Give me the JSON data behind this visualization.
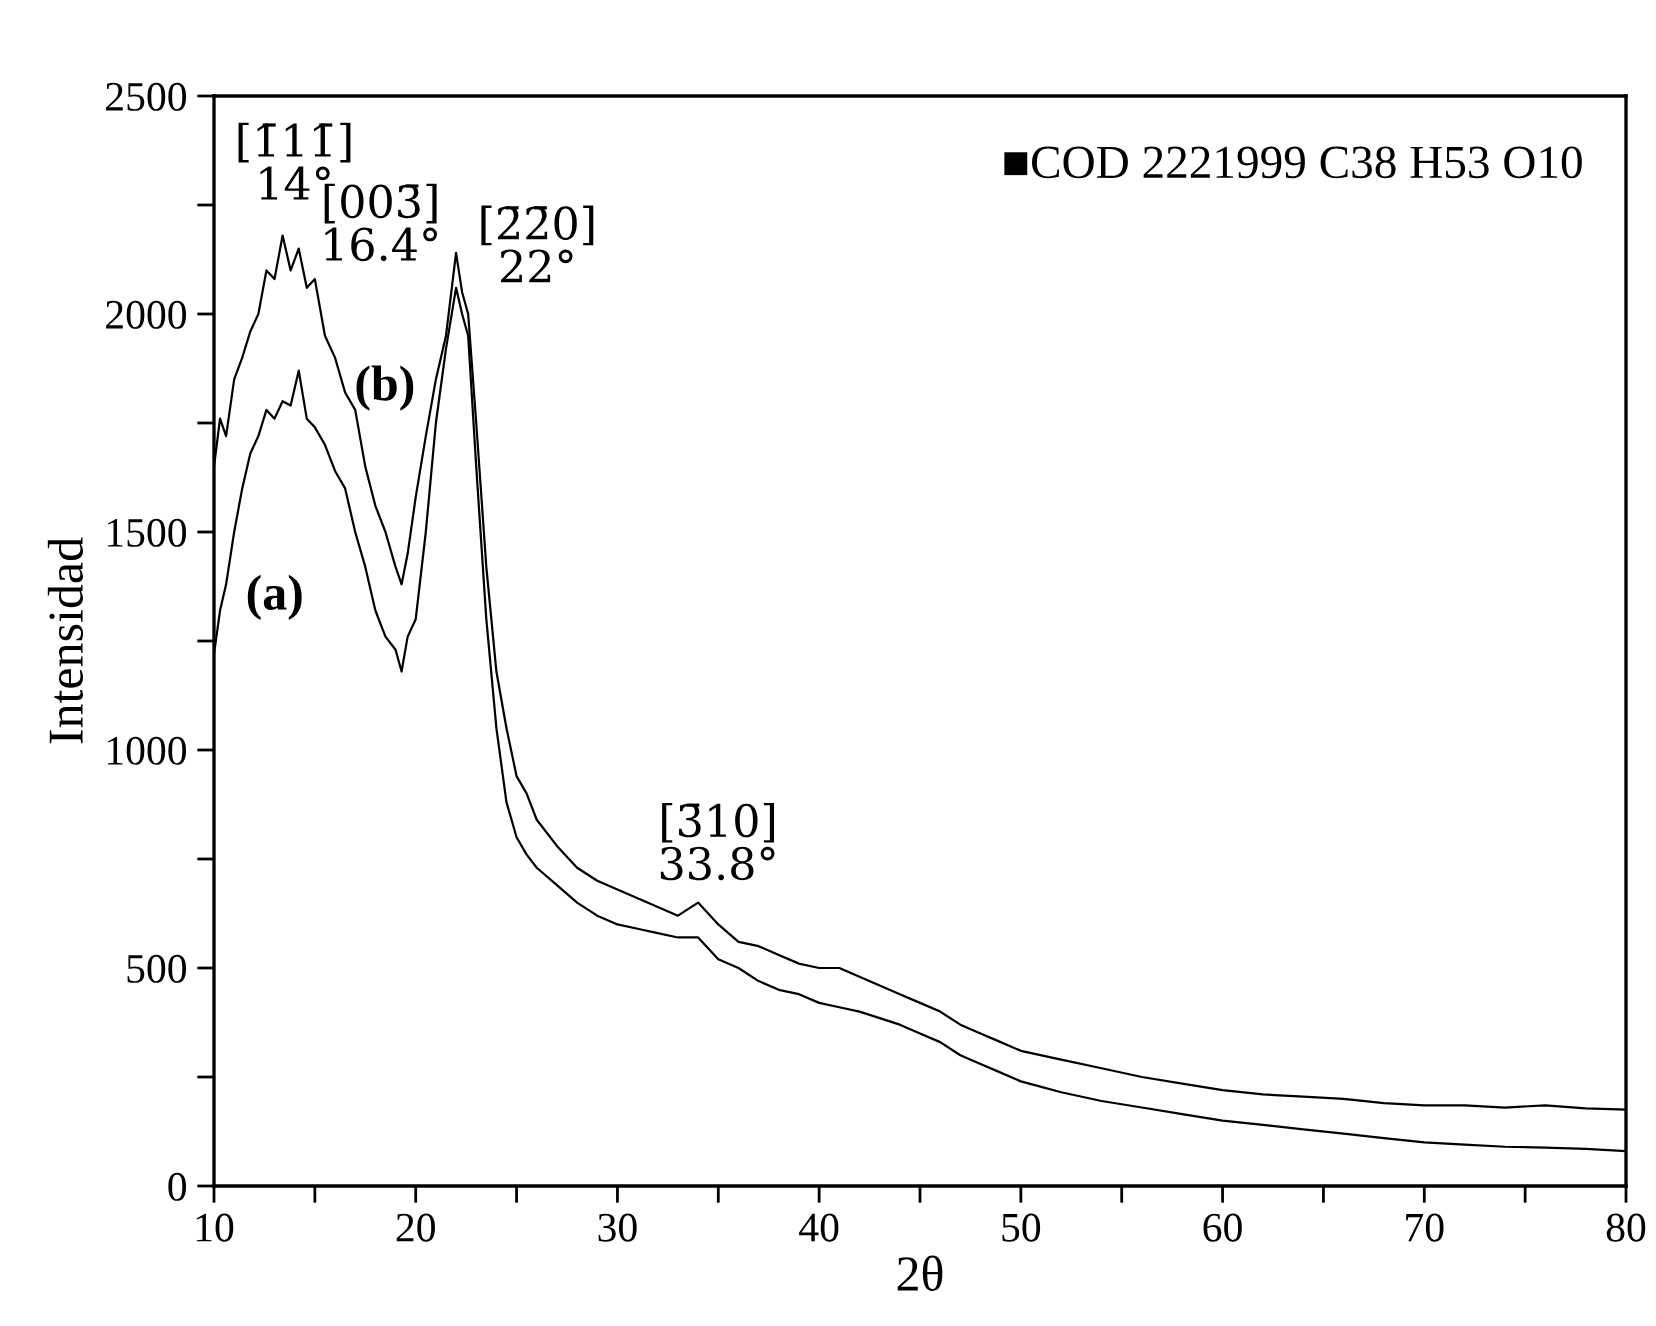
{
  "chart_data": {
    "type": "line",
    "xlabel": "2θ",
    "ylabel": "Intensidad",
    "xlim": [
      10,
      80
    ],
    "ylim": [
      0,
      2500
    ],
    "xticks": [
      10,
      {
        "value": 15,
        "label": null
      },
      20,
      {
        "value": 25,
        "label": null
      },
      30,
      {
        "value": 35,
        "label": null
      },
      40,
      {
        "value": 45,
        "label": null
      },
      50,
      {
        "value": 55,
        "label": null
      },
      60,
      {
        "value": 65,
        "label": null
      },
      70,
      {
        "value": 75,
        "label": null
      },
      80
    ],
    "yticks": [
      0,
      {
        "value": 250,
        "label": null
      },
      500,
      {
        "value": 750,
        "label": null
      },
      1000,
      {
        "value": 1250,
        "label": null
      },
      1500,
      {
        "value": 1750,
        "label": null
      },
      2000,
      {
        "value": 2250,
        "label": null
      },
      2500
    ],
    "grid": false,
    "marker": "none",
    "line_style": "solid",
    "series": [
      {
        "color": "#000000",
        "x": [
          10,
          10.3,
          10.6,
          11,
          11.4,
          11.8,
          12.2,
          12.6,
          13,
          13.4,
          13.8,
          14.2,
          14.6,
          15,
          15.5,
          16,
          16.5,
          17,
          17.5,
          18,
          18.5,
          19,
          19.3,
          19.6,
          20,
          20.5,
          21,
          21.5,
          22,
          22.3,
          22.6,
          23,
          23.5,
          24,
          24.5,
          25,
          25.5,
          26,
          27,
          28,
          29,
          30,
          31,
          32,
          33,
          34,
          35,
          36,
          37,
          38,
          39,
          40,
          41,
          42,
          43,
          44,
          45,
          46,
          47,
          48,
          49,
          50,
          52,
          54,
          56,
          58,
          60,
          62,
          64,
          66,
          68,
          70,
          72,
          74,
          76,
          78,
          80
        ],
        "values": [
          1650,
          1760,
          1720,
          1850,
          1900,
          1960,
          2000,
          2100,
          2080,
          2180,
          2100,
          2150,
          2060,
          2080,
          1950,
          1900,
          1820,
          1780,
          1650,
          1560,
          1500,
          1420,
          1380,
          1450,
          1580,
          1720,
          1850,
          1950,
          2140,
          2050,
          2000,
          1750,
          1420,
          1180,
          1050,
          940,
          900,
          840,
          780,
          730,
          700,
          680,
          660,
          640,
          620,
          650,
          600,
          560,
          550,
          530,
          510,
          500,
          500,
          480,
          460,
          440,
          420,
          400,
          370,
          350,
          330,
          310,
          290,
          270,
          250,
          235,
          220,
          210,
          205,
          200,
          190,
          185,
          185,
          180,
          185,
          178,
          175
        ]
      },
      {
        "color": "#000000",
        "x": [
          10,
          10.3,
          10.6,
          11,
          11.4,
          11.8,
          12.2,
          12.6,
          13,
          13.4,
          13.8,
          14.2,
          14.6,
          15,
          15.5,
          16,
          16.5,
          17,
          17.5,
          18,
          18.5,
          19,
          19.3,
          19.6,
          20,
          20.5,
          21,
          21.5,
          22,
          22.3,
          22.6,
          23,
          23.5,
          24,
          24.5,
          25,
          25.5,
          26,
          27,
          28,
          29,
          30,
          31,
          32,
          33,
          34,
          35,
          36,
          37,
          38,
          39,
          40,
          41,
          42,
          43,
          44,
          45,
          46,
          47,
          48,
          49,
          50,
          52,
          54,
          56,
          58,
          60,
          62,
          64,
          66,
          68,
          70,
          72,
          74,
          76,
          78,
          80
        ],
        "values": [
          1220,
          1320,
          1380,
          1500,
          1600,
          1680,
          1720,
          1780,
          1760,
          1800,
          1790,
          1870,
          1760,
          1740,
          1700,
          1640,
          1600,
          1500,
          1420,
          1320,
          1260,
          1230,
          1180,
          1260,
          1300,
          1500,
          1750,
          1920,
          2060,
          2000,
          1950,
          1650,
          1300,
          1050,
          880,
          800,
          760,
          730,
          690,
          650,
          620,
          600,
          590,
          580,
          570,
          570,
          520,
          500,
          470,
          450,
          440,
          420,
          410,
          400,
          385,
          370,
          350,
          330,
          300,
          280,
          260,
          240,
          215,
          195,
          180,
          165,
          150,
          140,
          130,
          120,
          110,
          100,
          95,
          90,
          88,
          85,
          80
        ]
      }
    ],
    "annotations": [
      "[1̄11̄]\n14°",
      "[003̄]\n16.4°",
      "[2̄2̄0]\n22°",
      "[3̄10]\n33.8°",
      "(a)",
      "(b)",
      "■COD 2221999 C38 H53 O10"
    ]
  }
}
